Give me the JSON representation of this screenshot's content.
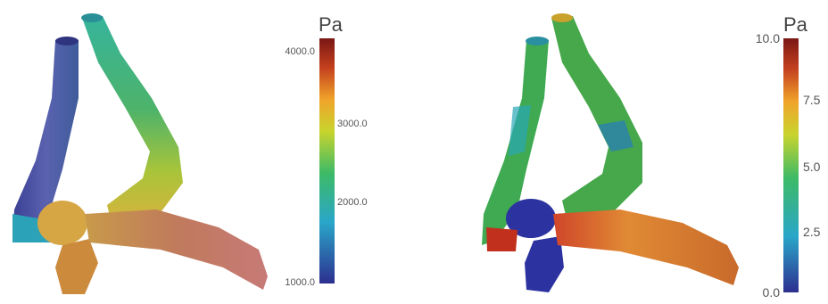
{
  "left_panel": {
    "colorbar": {
      "unit": "Pa",
      "ticks": [
        "4000.0",
        "3000.0",
        "2000.0",
        "1000.0"
      ],
      "colors": [
        "#2c2f8f",
        "#2aa6c9",
        "#3dba66",
        "#c8d42e",
        "#f0a42a",
        "#c4401e",
        "#7a1714"
      ]
    }
  },
  "right_panel": {
    "colorbar": {
      "unit": "Pa",
      "ticks": [
        "10.0",
        "7.5",
        "5.0",
        "2.5",
        "0.0"
      ],
      "colors": [
        "#2c2f8f",
        "#2aa6c9",
        "#3dba66",
        "#c8d42e",
        "#f0a42a",
        "#c4401e",
        "#7a1714"
      ]
    }
  }
}
